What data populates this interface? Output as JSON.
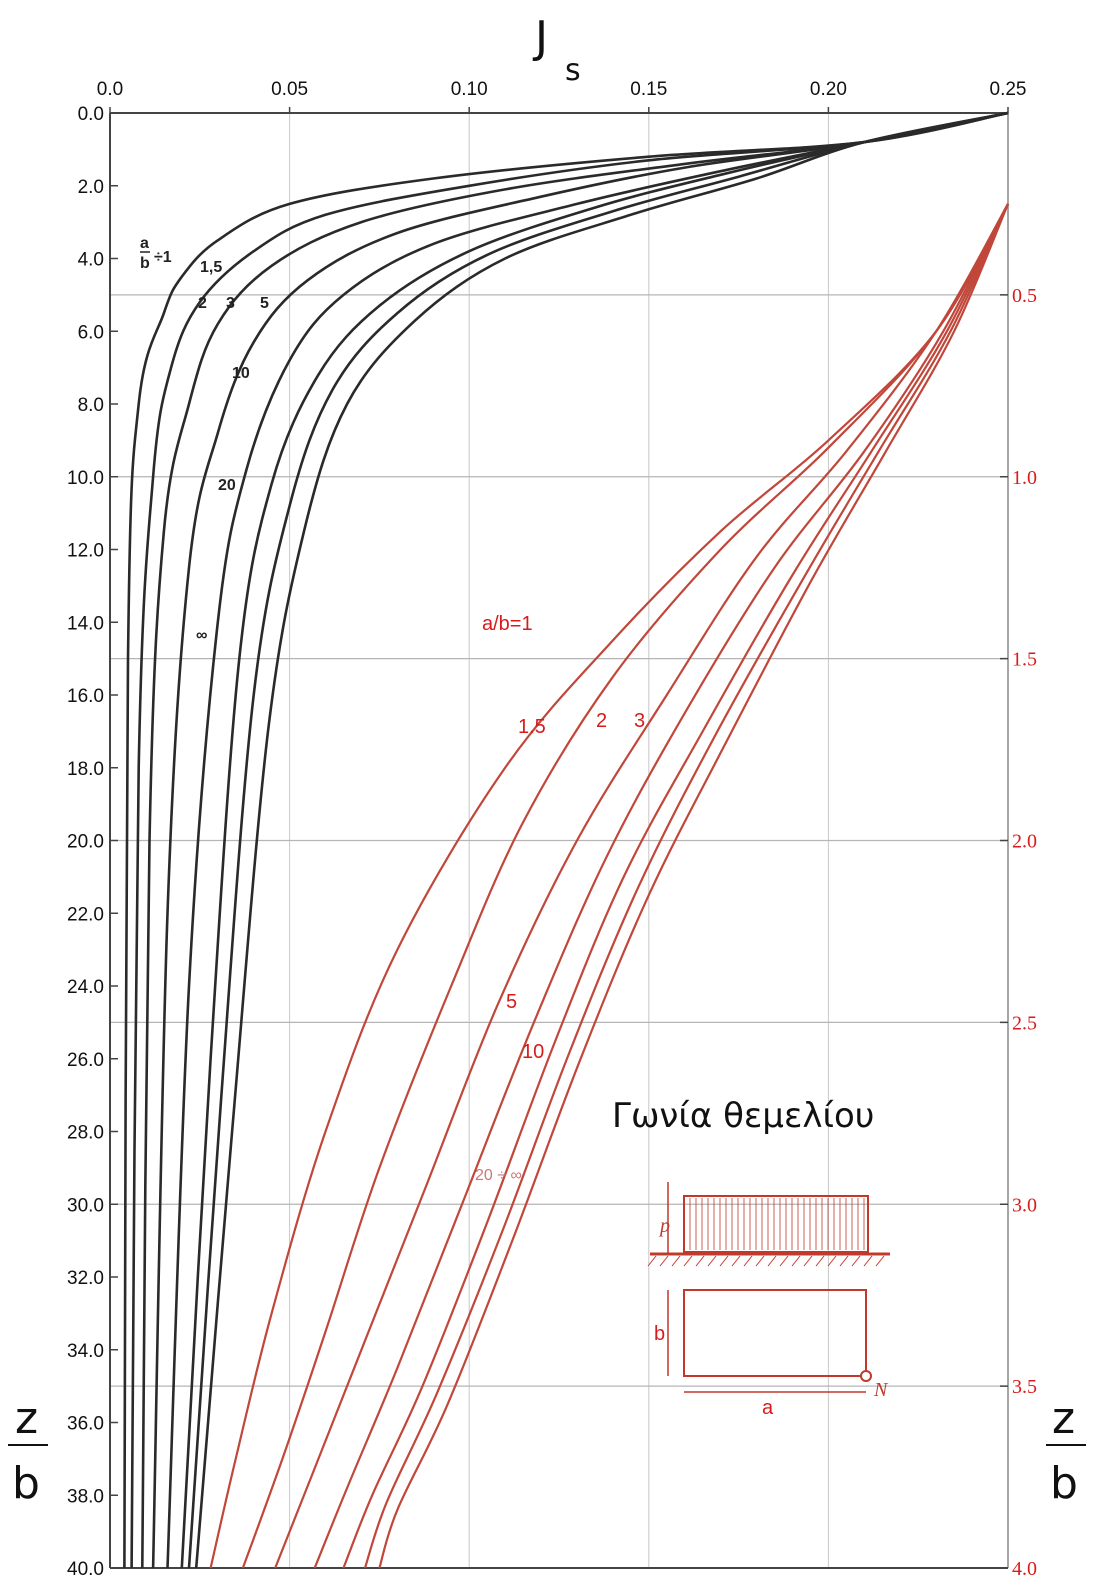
{
  "chart_data": {
    "type": "line",
    "title": "Γωνία θεμελίου",
    "x_axis": {
      "label": "J",
      "label_subscript": "s",
      "range": [
        0.0,
        0.25
      ],
      "ticks": [
        "0.0",
        "0.05",
        "0.10",
        "0.15",
        "0.20",
        "0.25"
      ],
      "tick_values": [
        0.0,
        0.05,
        0.1,
        0.15,
        0.2,
        0.25
      ]
    },
    "y_axis_left": {
      "label_num": "z",
      "label_den": "b",
      "range": [
        0.0,
        40.0
      ],
      "ticks": [
        "0.0",
        "2.0",
        "4.0",
        "6.0",
        "8.0",
        "10.0",
        "12.0",
        "14.0",
        "16.0",
        "18.0",
        "20.0",
        "22.0",
        "24.0",
        "26.0",
        "28.0",
        "30.0",
        "32.0",
        "34.0",
        "36.0",
        "38.0",
        "40.0"
      ],
      "tick_values": [
        0,
        2,
        4,
        6,
        8,
        10,
        12,
        14,
        16,
        18,
        20,
        22,
        24,
        26,
        28,
        30,
        32,
        34,
        36,
        38,
        40
      ]
    },
    "y_axis_right": {
      "label_num": "z",
      "label_den": "b",
      "range": [
        0.0,
        4.0
      ],
      "ticks": [
        "0.5",
        "1.0",
        "1.5",
        "2.0",
        "2.5",
        "3.0",
        "3.5",
        "4.0"
      ],
      "tick_values": [
        0.5,
        1.0,
        1.5,
        2.0,
        2.5,
        3.0,
        3.5,
        4.0
      ]
    },
    "grid": true,
    "series_black": [
      {
        "label": "a/b=1",
        "x": [
          0.25,
          0.21,
          0.15,
          0.09,
          0.05,
          0.03,
          0.02,
          0.015,
          0.008,
          0.005,
          0.004
        ],
        "y": [
          0,
          0.8,
          1.2,
          1.8,
          2.5,
          3.5,
          4.5,
          5.5,
          8,
          15,
          40
        ]
      },
      {
        "label": "1,5",
        "x": [
          0.25,
          0.21,
          0.15,
          0.1,
          0.06,
          0.04,
          0.025,
          0.017,
          0.012,
          0.008,
          0.006
        ],
        "y": [
          0,
          0.8,
          1.3,
          2.0,
          2.8,
          3.8,
          5.2,
          7,
          10,
          18,
          40
        ]
      },
      {
        "label": "2",
        "x": [
          0.25,
          0.21,
          0.16,
          0.11,
          0.07,
          0.045,
          0.03,
          0.022,
          0.015,
          0.011,
          0.009
        ],
        "y": [
          0,
          0.8,
          1.4,
          2.1,
          3.0,
          4.2,
          5.8,
          8,
          11.5,
          20,
          40
        ]
      },
      {
        "label": "3",
        "x": [
          0.25,
          0.21,
          0.16,
          0.12,
          0.08,
          0.055,
          0.04,
          0.03,
          0.022,
          0.016,
          0.012
        ],
        "y": [
          0,
          0.8,
          1.5,
          2.3,
          3.3,
          4.6,
          6.3,
          8.8,
          12.5,
          22,
          40
        ]
      },
      {
        "label": "5",
        "x": [
          0.25,
          0.21,
          0.17,
          0.13,
          0.09,
          0.065,
          0.05,
          0.038,
          0.03,
          0.022,
          0.016
        ],
        "y": [
          0,
          0.8,
          1.6,
          2.5,
          3.6,
          5.0,
          6.8,
          9.8,
          14,
          24,
          40
        ]
      },
      {
        "label": "10",
        "x": [
          0.25,
          0.21,
          0.17,
          0.135,
          0.1,
          0.075,
          0.058,
          0.045,
          0.036,
          0.028,
          0.02
        ],
        "y": [
          0,
          0.8,
          1.7,
          2.6,
          3.8,
          5.3,
          7.2,
          10.2,
          15,
          26,
          40
        ]
      },
      {
        "label": "20",
        "x": [
          0.25,
          0.21,
          0.175,
          0.14,
          0.105,
          0.08,
          0.062,
          0.05,
          0.04,
          0.031,
          0.022
        ],
        "y": [
          0,
          0.8,
          1.75,
          2.7,
          3.9,
          5.5,
          7.6,
          10.8,
          16,
          27,
          40
        ]
      },
      {
        "label": "∞",
        "x": [
          0.25,
          0.21,
          0.18,
          0.145,
          0.11,
          0.085,
          0.066,
          0.054,
          0.044,
          0.034,
          0.024
        ],
        "y": [
          0,
          0.8,
          1.8,
          2.8,
          4.0,
          5.7,
          8.0,
          11.5,
          17,
          28,
          40
        ]
      }
    ],
    "series_red": [
      {
        "label": "a/b=1",
        "x": [
          0.25,
          0.23,
          0.2,
          0.17,
          0.14,
          0.11,
          0.08,
          0.06,
          0.045,
          0.035,
          0.028
        ],
        "y": [
          0.25,
          0.6,
          0.9,
          1.15,
          1.45,
          1.8,
          2.3,
          2.8,
          3.3,
          3.7,
          4.0
        ]
      },
      {
        "label": "1.5",
        "x": [
          0.25,
          0.23,
          0.2,
          0.17,
          0.14,
          0.115,
          0.095,
          0.075,
          0.06,
          0.048,
          0.037
        ],
        "y": [
          0.25,
          0.6,
          0.92,
          1.2,
          1.55,
          1.95,
          2.4,
          2.9,
          3.35,
          3.7,
          4.0
        ]
      },
      {
        "label": "2",
        "x": [
          0.25,
          0.23,
          0.205,
          0.18,
          0.155,
          0.13,
          0.108,
          0.088,
          0.07,
          0.056,
          0.046
        ],
        "y": [
          0.25,
          0.6,
          0.93,
          1.22,
          1.6,
          2.0,
          2.45,
          2.95,
          3.4,
          3.75,
          4.0
        ]
      },
      {
        "label": "3",
        "x": [
          0.25,
          0.232,
          0.21,
          0.185,
          0.16,
          0.138,
          0.118,
          0.098,
          0.08,
          0.066,
          0.057
        ],
        "y": [
          0.25,
          0.6,
          0.93,
          1.25,
          1.65,
          2.05,
          2.5,
          3.0,
          3.45,
          3.78,
          4.0
        ]
      },
      {
        "label": "5",
        "x": [
          0.25,
          0.233,
          0.212,
          0.19,
          0.165,
          0.143,
          0.124,
          0.105,
          0.087,
          0.073,
          0.065
        ],
        "y": [
          0.25,
          0.6,
          0.93,
          1.27,
          1.7,
          2.1,
          2.55,
          3.05,
          3.5,
          3.8,
          4.0
        ]
      },
      {
        "label": "10",
        "x": [
          0.25,
          0.234,
          0.214,
          0.193,
          0.168,
          0.147,
          0.128,
          0.109,
          0.091,
          0.077,
          0.071
        ],
        "y": [
          0.25,
          0.6,
          0.93,
          1.28,
          1.72,
          2.13,
          2.58,
          3.08,
          3.52,
          3.82,
          4.0
        ]
      },
      {
        "label": "20 ÷ ∞",
        "x": [
          0.25,
          0.235,
          0.216,
          0.195,
          0.171,
          0.15,
          0.131,
          0.112,
          0.094,
          0.08,
          0.075
        ],
        "y": [
          0.25,
          0.6,
          0.93,
          1.29,
          1.74,
          2.15,
          2.6,
          3.1,
          3.55,
          3.84,
          4.0
        ]
      }
    ]
  },
  "diagram": {
    "load_label": "p",
    "depth_label": "b",
    "width_label": "a",
    "corner_label": "N"
  }
}
